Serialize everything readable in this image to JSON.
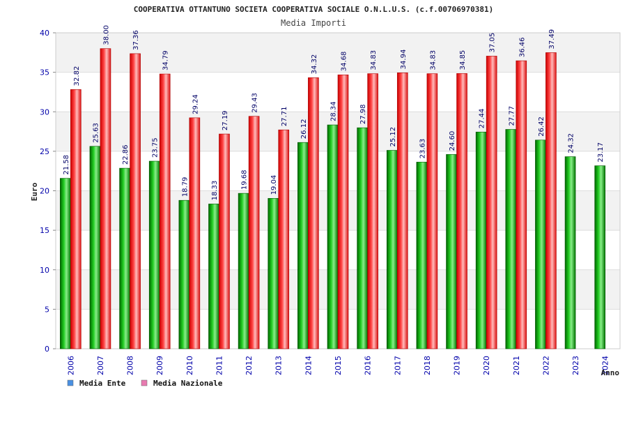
{
  "chart_data": {
    "type": "bar",
    "title": "COOPERATIVA OTTANTUNO SOCIETA COOPERATIVA SOCIALE O.N.L.U.S. (c.f.00706970381)",
    "subtitle": "Media Importi",
    "xlabel": "Anno",
    "ylabel": "Euro",
    "ylim": [
      0,
      40
    ],
    "yticks": [
      0,
      5,
      10,
      15,
      20,
      25,
      30,
      35,
      40
    ],
    "grid": true,
    "legend_position": "bottom-left",
    "categories": [
      "2006",
      "2007",
      "2008",
      "2009",
      "2010",
      "2011",
      "2012",
      "2013",
      "2014",
      "2015",
      "2016",
      "2017",
      "2018",
      "2019",
      "2020",
      "2021",
      "2022",
      "2023",
      "2024"
    ],
    "series": [
      {
        "name": "Media Ente",
        "color": "#00aa00",
        "legend_color": "#4a90e2",
        "values": [
          21.58,
          25.63,
          22.86,
          23.75,
          18.79,
          18.33,
          19.68,
          19.04,
          26.12,
          28.34,
          27.98,
          25.12,
          23.63,
          24.6,
          27.44,
          27.77,
          26.42,
          24.32,
          23.17
        ],
        "labels": [
          "21.58",
          "25.63",
          "22.86",
          "23.75",
          "18.79",
          "18.33",
          "19.68",
          "19.04",
          "26.12",
          "28.34",
          "27.98",
          "25.12",
          "23.63",
          "24.60",
          "27.44",
          "27.77",
          "26.42",
          "24.32",
          "23.17"
        ]
      },
      {
        "name": "Media Nazionale",
        "color": "#ee2222",
        "legend_color": "#e87ab0",
        "values": [
          32.82,
          38.0,
          37.36,
          34.79,
          29.24,
          27.19,
          29.43,
          27.71,
          34.32,
          34.68,
          34.83,
          34.94,
          34.83,
          34.85,
          37.05,
          36.46,
          37.49,
          null,
          null
        ],
        "labels": [
          "32.82",
          "38.00",
          "37.36",
          "34.79",
          "29.24",
          "27.19",
          "29.43",
          "27.71",
          "34.32",
          "34.68",
          "34.83",
          "34.94",
          "34.83",
          "34.85",
          "37.05",
          "36.46",
          "37.49",
          null,
          null
        ]
      }
    ]
  }
}
